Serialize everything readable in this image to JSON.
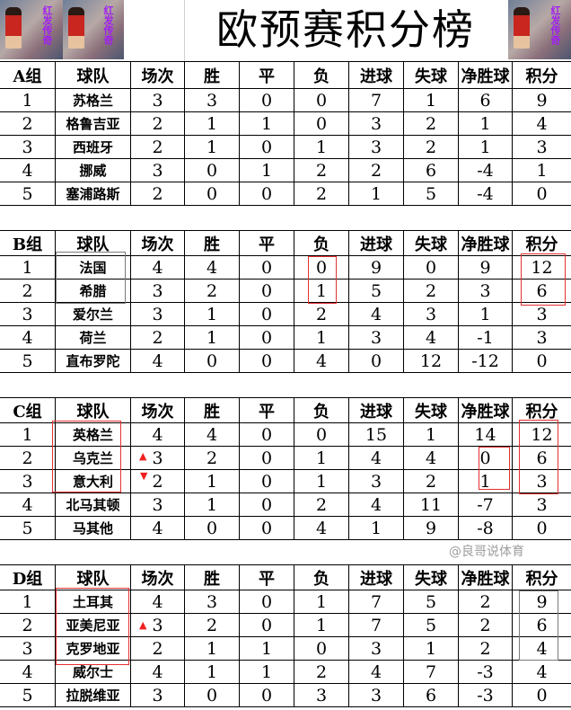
{
  "title": "欧预赛积分榜",
  "watermark": "@良哥说体育",
  "header_images": [
    "player-illustration",
    "player-illustration",
    "player-illustration"
  ],
  "image_text": "红发传奇",
  "columns": [
    "球队",
    "场次",
    "胜",
    "平",
    "负",
    "进球",
    "失球",
    "净胜球",
    "积分"
  ],
  "highlight_color": "#e53030",
  "groups": [
    {
      "label": "A组",
      "rows": [
        [
          "1",
          "苏格兰",
          "3",
          "3",
          "0",
          "0",
          "7",
          "1",
          "6",
          "9"
        ],
        [
          "2",
          "格鲁吉亚",
          "2",
          "1",
          "1",
          "0",
          "3",
          "2",
          "1",
          "4"
        ],
        [
          "3",
          "西班牙",
          "2",
          "1",
          "0",
          "1",
          "3",
          "2",
          "1",
          "3"
        ],
        [
          "4",
          "挪威",
          "3",
          "0",
          "1",
          "2",
          "2",
          "6",
          "-4",
          "1"
        ],
        [
          "5",
          "塞浦路斯",
          "2",
          "0",
          "0",
          "2",
          "1",
          "5",
          "-4",
          "0"
        ]
      ]
    },
    {
      "label": "B组",
      "rows": [
        [
          "1",
          "法国",
          "4",
          "4",
          "0",
          "0",
          "9",
          "0",
          "9",
          "12"
        ],
        [
          "2",
          "希腊",
          "3",
          "2",
          "0",
          "1",
          "5",
          "2",
          "3",
          "6"
        ],
        [
          "3",
          "爱尔兰",
          "3",
          "1",
          "0",
          "2",
          "4",
          "3",
          "1",
          "3"
        ],
        [
          "4",
          "荷兰",
          "2",
          "1",
          "0",
          "1",
          "3",
          "4",
          "-1",
          "3"
        ],
        [
          "5",
          "直布罗陀",
          "4",
          "0",
          "0",
          "4",
          "0",
          "12",
          "-12",
          "0"
        ]
      ]
    },
    {
      "label": "C组",
      "rows": [
        [
          "1",
          "英格兰",
          "4",
          "4",
          "0",
          "0",
          "15",
          "1",
          "14",
          "12"
        ],
        [
          "2",
          "乌克兰",
          "3",
          "2",
          "0",
          "1",
          "4",
          "4",
          "0",
          "6"
        ],
        [
          "3",
          "意大利",
          "2",
          "1",
          "0",
          "1",
          "3",
          "2",
          "1",
          "3"
        ],
        [
          "4",
          "北马其顿",
          "3",
          "1",
          "0",
          "2",
          "4",
          "11",
          "-7",
          "3"
        ],
        [
          "5",
          "马其他",
          "4",
          "0",
          "0",
          "4",
          "1",
          "9",
          "-8",
          "0"
        ]
      ]
    },
    {
      "label": "D组",
      "rows": [
        [
          "1",
          "土耳其",
          "4",
          "3",
          "0",
          "1",
          "7",
          "5",
          "2",
          "9"
        ],
        [
          "2",
          "亚美尼亚",
          "3",
          "2",
          "0",
          "1",
          "7",
          "5",
          "2",
          "6"
        ],
        [
          "3",
          "克罗地亚",
          "2",
          "1",
          "1",
          "0",
          "3",
          "1",
          "2",
          "4"
        ],
        [
          "4",
          "威尔士",
          "4",
          "1",
          "1",
          "2",
          "4",
          "7",
          "-3",
          "4"
        ],
        [
          "5",
          "拉脱维亚",
          "3",
          "0",
          "0",
          "3",
          "3",
          "6",
          "-3",
          "0"
        ]
      ]
    }
  ],
  "markers": [
    {
      "group": "C组",
      "team": "乌克兰",
      "icon": "arrow-up-icon"
    },
    {
      "group": "C组",
      "team": "意大利",
      "icon": "arrow-down-icon"
    },
    {
      "group": "D组",
      "team": "亚美尼亚",
      "icon": "arrow-up-icon"
    }
  ]
}
